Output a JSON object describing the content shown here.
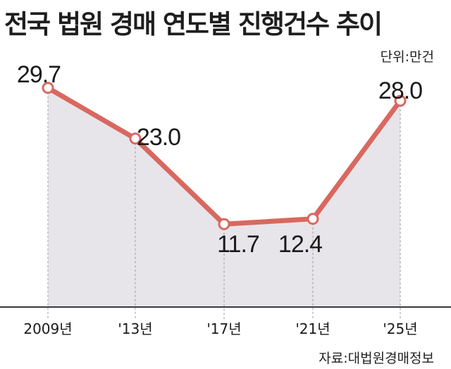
{
  "chart_data": {
    "type": "area",
    "title": "전국 법원 경매 연도별 진행건수 추이",
    "unit_label": "단위:만건",
    "source": "자료:대법원경매정보",
    "categories": [
      "2009년",
      "'13년",
      "'17년",
      "'21년",
      "'25년"
    ],
    "values": [
      29.7,
      23.0,
      11.7,
      12.4,
      28.0
    ],
    "value_labels": [
      "29.7",
      "23.0",
      "11.7",
      "12.4",
      "28.0"
    ],
    "ylim": [
      0,
      35
    ],
    "grid": false,
    "line_color": "#d9685f",
    "fill_color": "#e7e5ea",
    "legend": "none"
  }
}
